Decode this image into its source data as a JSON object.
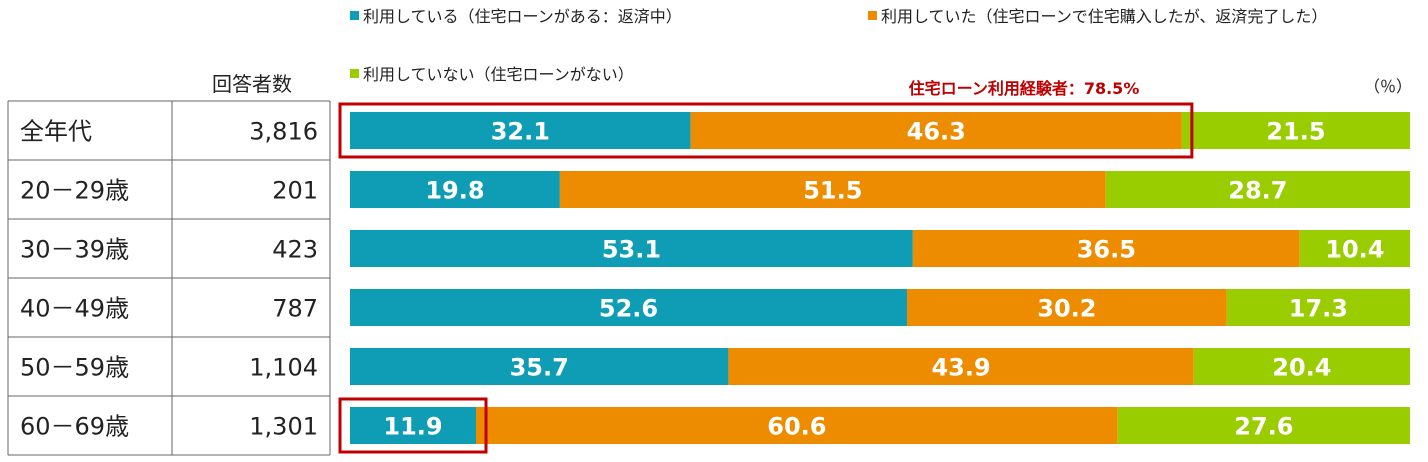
{
  "chart_data": {
    "type": "stacked-bar-100",
    "orientation": "horizontal",
    "legend": [
      {
        "name": "利用している（住宅ローンがある：返済中）",
        "color": "#0e9db5"
      },
      {
        "name": "利用していた（住宅ローンで住宅購入したが、返済完了した）",
        "color": "#ee8c00"
      },
      {
        "name": "利用していない（住宅ローンがない）",
        "color": "#9acd00"
      }
    ],
    "unit_label": "（％）",
    "count_header": "回答者数",
    "highlight_label": "住宅ローン利用経験者：78.5%",
    "highlight_color": "#c00000",
    "categories": [
      "全年代",
      "20－29歳",
      "30－39歳",
      "40－49歳",
      "50－59歳",
      "60－69歳"
    ],
    "counts": [
      "3,816",
      "201",
      "423",
      "787",
      "1,104",
      "1,301"
    ],
    "series": [
      {
        "name": "利用している（住宅ローンがある：返済中）",
        "color": "#0e9db5",
        "values": [
          32.1,
          19.8,
          53.1,
          52.6,
          35.7,
          11.9
        ],
        "labels": [
          "32.1",
          "19.8",
          "53.1",
          "52.6",
          "35.7",
          "11.9"
        ]
      },
      {
        "name": "利用していた（住宅ローンで住宅購入したが、返済完了した）",
        "color": "#ee8c00",
        "values": [
          46.3,
          51.5,
          36.5,
          30.2,
          43.9,
          60.6
        ],
        "labels": [
          "46.3",
          "51.5",
          "36.5",
          "30.2",
          "43.9",
          "60.6"
        ]
      },
      {
        "name": "利用していない（住宅ローンがない）",
        "color": "#9acd00",
        "values": [
          21.5,
          28.7,
          10.4,
          17.3,
          20.4,
          27.6
        ],
        "labels": [
          "21.5",
          "28.7",
          "10.4",
          "17.3",
          "20.4",
          "27.6"
        ]
      }
    ],
    "highlights": [
      {
        "category_index": 0,
        "series_indices": [
          0,
          1
        ]
      },
      {
        "category_index": 5,
        "series_indices": [
          0
        ]
      }
    ]
  }
}
